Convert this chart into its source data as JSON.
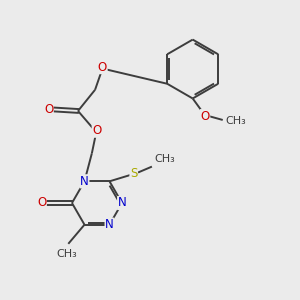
{
  "bg_color": "#ebebeb",
  "bond_color": "#3d3d3d",
  "N_color": "#0000cc",
  "O_color": "#cc0000",
  "S_color": "#aaaa00",
  "line_width": 1.4,
  "font_size": 8.5,
  "fig_size": [
    3.0,
    3.0
  ],
  "dpi": 100,
  "xlim": [
    0,
    10
  ],
  "ylim": [
    0,
    10
  ]
}
